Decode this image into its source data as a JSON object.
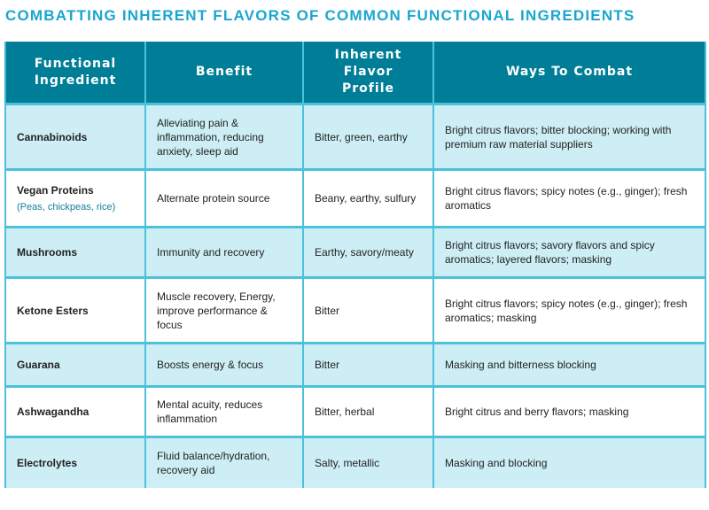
{
  "title": "COMBATTING INHERENT FLAVORS OF COMMON FUNCTIONAL INGREDIENTS",
  "colors": {
    "title": "#1aa6cf",
    "header_bg": "#007e98",
    "row_alt": "#cdeef5",
    "ingredient_text": "#117f9c",
    "border": "#4cc1dc"
  },
  "headers": [
    "Functional Ingredient",
    "Benefit",
    "Inherent Flavor Profile",
    "Ways To Combat"
  ],
  "rows": [
    {
      "ingredient": "Cannabinoids",
      "sub": "",
      "benefit": "Alleviating pain & inflammation, reducing anxiety, sleep aid",
      "flavor": "Bitter, green, earthy",
      "combat": "Bright citrus flavors; bitter blocking; working with premium raw material suppliers"
    },
    {
      "ingredient": "Vegan Proteins",
      "sub": "(Peas, chickpeas, rice)",
      "benefit": "Alternate protein source",
      "flavor": "Beany, earthy, sulfury",
      "combat": "Bright citrus flavors; spicy notes (e.g., ginger); fresh aromatics"
    },
    {
      "ingredient": "Mushrooms",
      "sub": "",
      "benefit": "Immunity and recovery",
      "flavor": "Earthy, savory/meaty",
      "combat": "Bright citrus flavors; savory flavors and spicy aromatics; layered flavors; masking"
    },
    {
      "ingredient": "Ketone Esters",
      "sub": "",
      "benefit": "Muscle recovery, Energy, improve performance & focus",
      "flavor": "Bitter",
      "combat": "Bright citrus flavors; spicy notes (e.g., ginger); fresh aromatics; masking"
    },
    {
      "ingredient": "Guarana",
      "sub": "",
      "benefit": "Boosts energy & focus",
      "flavor": "Bitter",
      "combat": "Masking and bitterness blocking"
    },
    {
      "ingredient": "Ashwagandha",
      "sub": "",
      "benefit": "Mental acuity, reduces inflammation",
      "flavor": "Bitter, herbal",
      "combat": "Bright citrus and berry flavors; masking"
    },
    {
      "ingredient": "Electrolytes",
      "sub": "",
      "benefit": "Fluid balance/hydration, recovery aid",
      "flavor": "Salty, metallic",
      "combat": "Masking and blocking"
    }
  ]
}
